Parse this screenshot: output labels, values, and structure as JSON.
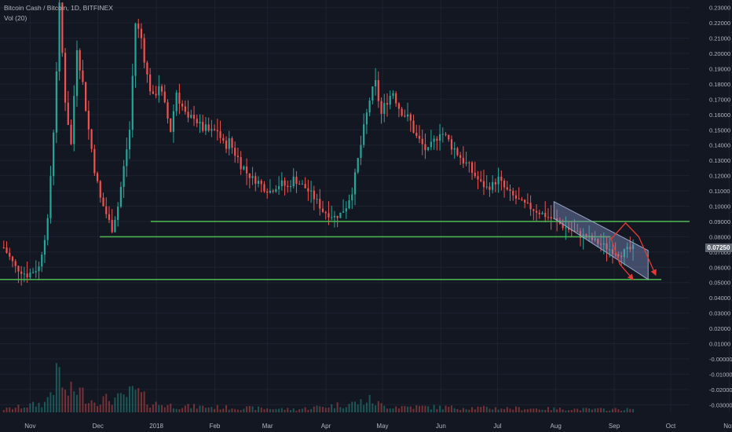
{
  "legend": {
    "symbol": "Bitcoin Cash / Bitcoin, 1D, BITFINEX",
    "indicator": "Vol (20)"
  },
  "last_price": "0.07250",
  "colors": {
    "background": "#131722",
    "grid": "#1e2230",
    "up": "#26a69a",
    "down": "#ef5350",
    "support": "#4caf50",
    "channel": "#7c8fbf",
    "projection": "#e53935",
    "text": "#b2b5be",
    "price_tag": "#5f6672"
  },
  "chart_data": {
    "type": "candlestick",
    "title": "",
    "ylim": [
      -0.035,
      0.235
    ],
    "xlim_days": [
      -6,
      360
    ],
    "x_tick_labels": [
      "Nov",
      "Dec",
      "2018",
      "Feb",
      "Mar",
      "Apr",
      "May",
      "Jun",
      "Jul",
      "Aug",
      "Sep",
      "Oct",
      "Nov"
    ],
    "x_tick_days": [
      10,
      46,
      77,
      108,
      136,
      167,
      197,
      228,
      258,
      289,
      320,
      350,
      381
    ],
    "y_tick_values": [
      0.23,
      0.22,
      0.21,
      0.2,
      0.19,
      0.18,
      0.17,
      0.16,
      0.15,
      0.14,
      0.13,
      0.12,
      0.11,
      0.1,
      0.09,
      0.08,
      0.07,
      0.06,
      0.05,
      0.04,
      0.03,
      0.02,
      0.01,
      -0.0,
      -0.01,
      -0.02,
      -0.03
    ],
    "y_tick_labels": [
      "0.23000",
      "0.22000",
      "0.21000",
      "0.20000",
      "0.19000",
      "0.18000",
      "0.17000",
      "0.16000",
      "0.15000",
      "0.14000",
      "0.13000",
      "0.12000",
      "0.11000",
      "0.10000",
      "0.09000",
      "0.08000",
      "0.07000",
      "0.06000",
      "0.05000",
      "0.04000",
      "0.03000",
      "0.02000",
      "0.01000",
      "-0.00000",
      "-0.01000",
      "-0.02000",
      "-0.03000"
    ],
    "price_path": [
      [
        0,
        0.073
      ],
      [
        4,
        0.06
      ],
      [
        8,
        0.055
      ],
      [
        12,
        0.06
      ],
      [
        15,
        0.09
      ],
      [
        17,
        0.15
      ],
      [
        19,
        0.23
      ],
      [
        21,
        0.17
      ],
      [
        23,
        0.14
      ],
      [
        25,
        0.205
      ],
      [
        27,
        0.18
      ],
      [
        29,
        0.15
      ],
      [
        31,
        0.125
      ],
      [
        33,
        0.105
      ],
      [
        35,
        0.095
      ],
      [
        37,
        0.085
      ],
      [
        39,
        0.1
      ],
      [
        41,
        0.125
      ],
      [
        43,
        0.15
      ],
      [
        45,
        0.22
      ],
      [
        47,
        0.21
      ],
      [
        49,
        0.185
      ],
      [
        51,
        0.17
      ],
      [
        53,
        0.18
      ],
      [
        55,
        0.165
      ],
      [
        57,
        0.15
      ],
      [
        59,
        0.175
      ],
      [
        61,
        0.165
      ],
      [
        63,
        0.155
      ],
      [
        65,
        0.16
      ],
      [
        67,
        0.152
      ],
      [
        69,
        0.15
      ],
      [
        71,
        0.148
      ],
      [
        73,
        0.15
      ],
      [
        75,
        0.14
      ],
      [
        77,
        0.142
      ],
      [
        79,
        0.135
      ],
      [
        81,
        0.128
      ],
      [
        83,
        0.122
      ],
      [
        85,
        0.118
      ],
      [
        87,
        0.116
      ],
      [
        89,
        0.112
      ],
      [
        91,
        0.11
      ],
      [
        93,
        0.113
      ],
      [
        95,
        0.115
      ],
      [
        97,
        0.112
      ],
      [
        99,
        0.118
      ],
      [
        101,
        0.115
      ],
      [
        103,
        0.112
      ],
      [
        105,
        0.108
      ],
      [
        107,
        0.103
      ],
      [
        109,
        0.097
      ],
      [
        111,
        0.095
      ],
      [
        113,
        0.093
      ],
      [
        115,
        0.095
      ],
      [
        117,
        0.1
      ],
      [
        119,
        0.11
      ],
      [
        121,
        0.13
      ],
      [
        123,
        0.15
      ],
      [
        125,
        0.17
      ],
      [
        127,
        0.18
      ],
      [
        129,
        0.16
      ],
      [
        131,
        0.17
      ],
      [
        133,
        0.175
      ],
      [
        135,
        0.165
      ],
      [
        137,
        0.16
      ],
      [
        139,
        0.155
      ],
      [
        141,
        0.145
      ],
      [
        143,
        0.14
      ],
      [
        145,
        0.135
      ],
      [
        147,
        0.142
      ],
      [
        149,
        0.15
      ],
      [
        151,
        0.145
      ],
      [
        153,
        0.14
      ],
      [
        155,
        0.135
      ],
      [
        157,
        0.13
      ],
      [
        159,
        0.125
      ],
      [
        161,
        0.12
      ],
      [
        163,
        0.115
      ],
      [
        165,
        0.112
      ],
      [
        167,
        0.114
      ],
      [
        169,
        0.118
      ],
      [
        171,
        0.112
      ],
      [
        173,
        0.108
      ],
      [
        175,
        0.105
      ],
      [
        177,
        0.102
      ],
      [
        179,
        0.1
      ],
      [
        181,
        0.098
      ],
      [
        183,
        0.096
      ],
      [
        185,
        0.094
      ],
      [
        187,
        0.092
      ],
      [
        189,
        0.09
      ],
      [
        191,
        0.087
      ],
      [
        193,
        0.085
      ],
      [
        195,
        0.083
      ],
      [
        197,
        0.081
      ],
      [
        199,
        0.08
      ],
      [
        201,
        0.078
      ],
      [
        203,
        0.076
      ],
      [
        205,
        0.074
      ],
      [
        207,
        0.072
      ],
      [
        209,
        0.07
      ],
      [
        211,
        0.069
      ],
      [
        213,
        0.071
      ],
      [
        215,
        0.0725
      ]
    ],
    "volume_path": [
      [
        0,
        0.002
      ],
      [
        14,
        0.006
      ],
      [
        17,
        0.018
      ],
      [
        19,
        0.026
      ],
      [
        21,
        0.012
      ],
      [
        25,
        0.015
      ],
      [
        30,
        0.008
      ],
      [
        40,
        0.009
      ],
      [
        45,
        0.014
      ],
      [
        50,
        0.006
      ],
      [
        60,
        0.004
      ],
      [
        80,
        0.003
      ],
      [
        100,
        0.002
      ],
      [
        120,
        0.006
      ],
      [
        125,
        0.008
      ],
      [
        130,
        0.004
      ],
      [
        160,
        0.003
      ],
      [
        200,
        0.002
      ],
      [
        215,
        0.002
      ]
    ],
    "x_scale": {
      "day0": 0,
      "day_end": 215
    },
    "support_lines": [
      {
        "y": 0.09,
        "x_start_day": 74,
        "x_end_day": 360
      },
      {
        "y": 0.08,
        "x_start_day": 47,
        "x_end_day": 318
      },
      {
        "y": 0.052,
        "x_start_day": -6,
        "x_end_day": 345
      }
    ],
    "channel": {
      "start_day": 288,
      "end_day": 338,
      "upper": [
        0.103,
        0.071
      ],
      "lower": [
        0.092,
        0.052
      ]
    },
    "projection_arrows": [
      [
        [
          318,
          0.08
        ],
        [
          323,
          0.062
        ],
        [
          330,
          0.052
        ]
      ],
      [
        [
          318,
          0.078
        ],
        [
          326,
          0.089
        ],
        [
          333,
          0.08
        ],
        [
          342,
          0.055
        ]
      ]
    ]
  }
}
